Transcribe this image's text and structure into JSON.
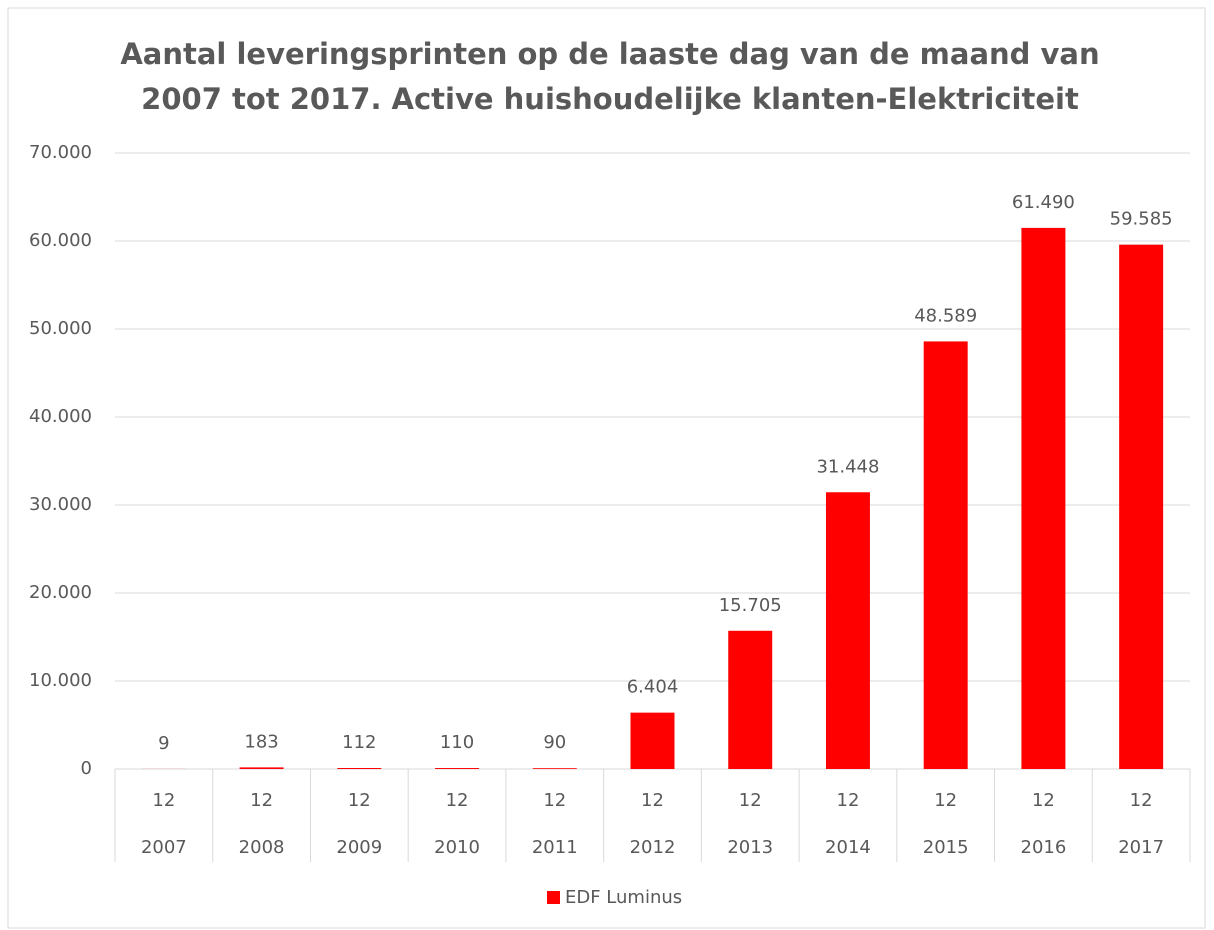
{
  "chart_data": {
    "type": "bar",
    "title": [
      "Aantal leveringsprinten op de laaste dag van de maand van",
      "2007 tot 2017. Active huishoudelijke klanten-Elektriciteit"
    ],
    "categories": [
      "12",
      "12",
      "12",
      "12",
      "12",
      "12",
      "12",
      "12",
      "12",
      "12",
      "12"
    ],
    "category_groups": [
      "2007",
      "2008",
      "2009",
      "2010",
      "2011",
      "2012",
      "2013",
      "2014",
      "2015",
      "2016",
      "2017"
    ],
    "series": [
      {
        "name": "EDF Luminus",
        "color": "#ff0000",
        "values": [
          9,
          183,
          112,
          110,
          90,
          6404,
          15705,
          31448,
          48589,
          61490,
          59585
        ],
        "value_labels": [
          "9",
          "183",
          "112",
          "110",
          "90",
          "6.404",
          "15.705",
          "31.448",
          "48.589",
          "61.490",
          "59.585"
        ]
      }
    ],
    "ylim": [
      0,
      70000
    ],
    "yticks": [
      0,
      {
        "value": 10000,
        "label": "10.000"
      },
      {
        "value": 20000,
        "label": "20.000"
      },
      {
        "value": 30000,
        "label": "30.000"
      },
      {
        "value": 40000,
        "label": "40.000"
      },
      {
        "value": 50000,
        "label": "50.000"
      },
      {
        "value": 60000,
        "label": "60.000"
      },
      {
        "value": 70000,
        "label": "70.000"
      }
    ],
    "grid": true,
    "legend": "bottom"
  }
}
